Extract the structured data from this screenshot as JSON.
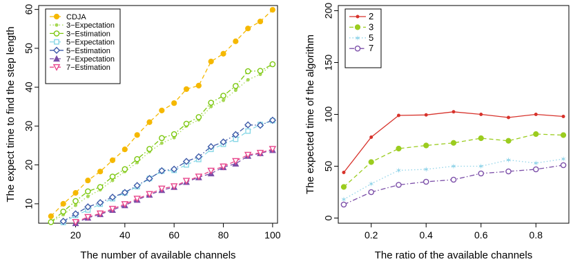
{
  "chart_data": [
    {
      "type": "line",
      "xlabel": "The number of available channels",
      "ylabel": "The expect time to find the step length",
      "xlim": [
        5,
        102
      ],
      "ylim": [
        5,
        61
      ],
      "xticks": [
        20,
        40,
        60,
        80,
        100
      ],
      "yticks": [
        10,
        20,
        30,
        40,
        50,
        60
      ],
      "legend_position": "top-left",
      "series": [
        {
          "name": "CDJA",
          "color": "#f5b800",
          "marker": "circle-filled",
          "line": "dashed",
          "x": [
            10,
            15,
            20,
            25,
            30,
            35,
            40,
            45,
            50,
            55,
            60,
            65,
            70,
            75,
            80,
            85,
            90,
            95,
            100
          ],
          "y": [
            6.8,
            10.0,
            12.8,
            16.0,
            18.3,
            21.2,
            24.0,
            27.7,
            31.0,
            34.0,
            35.9,
            39.5,
            40.4,
            46.6,
            48.6,
            51.8,
            55.1,
            56.9,
            59.9
          ]
        },
        {
          "name": "3−Expectation",
          "color": "#a6d854",
          "marker": "dot",
          "line": "dotted",
          "x": [
            10,
            15,
            20,
            25,
            30,
            35,
            40,
            45,
            50,
            55,
            60,
            65,
            70,
            75,
            80,
            85,
            90,
            95,
            100
          ],
          "y": [
            5.2,
            7.2,
            9.6,
            11.9,
            13.6,
            16.0,
            18.3,
            20.6,
            23.4,
            25.6,
            27.0,
            30.0,
            31.6,
            35.0,
            36.6,
            39.2,
            41.9,
            43.3,
            45.9
          ]
        },
        {
          "name": "3−Estimation",
          "color": "#7ac70c",
          "marker": "circle-open",
          "line": "dashdot",
          "x": [
            10,
            15,
            20,
            25,
            30,
            35,
            40,
            45,
            50,
            55,
            60,
            65,
            70,
            75,
            80,
            85,
            90,
            95,
            100
          ],
          "y": [
            5.3,
            8.0,
            10.7,
            13.2,
            14.3,
            17.0,
            18.9,
            21.5,
            24.1,
            26.9,
            27.9,
            30.6,
            32.3,
            36.0,
            37.8,
            40.3,
            44.1,
            44.2,
            45.9
          ]
        },
        {
          "name": "5−Expectation",
          "color": "#87d7e6",
          "marker": "square-open",
          "line": "dashed",
          "x": [
            15,
            20,
            25,
            30,
            35,
            40,
            45,
            50,
            55,
            60,
            65,
            70,
            75,
            80,
            85,
            90,
            95,
            100
          ],
          "y": [
            5.2,
            7.0,
            8.4,
            9.9,
            11.3,
            12.8,
            14.4,
            16.5,
            18.4,
            18.6,
            20.0,
            21.4,
            24.0,
            25.3,
            26.6,
            28.7,
            30.4,
            31.4
          ]
        },
        {
          "name": "5−Estimation",
          "color": "#3d5aa8",
          "marker": "diamond-open",
          "line": "dashdot",
          "x": [
            15,
            20,
            25,
            30,
            35,
            40,
            45,
            50,
            55,
            60,
            65,
            70,
            75,
            80,
            85,
            90,
            95,
            100
          ],
          "y": [
            5.5,
            7.4,
            9.2,
            10.3,
            11.7,
            12.9,
            14.7,
            16.5,
            18.5,
            18.9,
            20.9,
            22.1,
            24.7,
            25.9,
            27.8,
            30.3,
            30.2,
            31.5
          ]
        },
        {
          "name": "7−Expectation",
          "color": "#7b4ea8",
          "marker": "triangle-up",
          "line": "dashed",
          "x": [
            20,
            25,
            30,
            35,
            40,
            45,
            50,
            55,
            60,
            65,
            70,
            75,
            80,
            85,
            90,
            95,
            100
          ],
          "y": [
            5.0,
            6.4,
            7.3,
            8.4,
            9.6,
            11.0,
            12.3,
            13.5,
            14.3,
            15.6,
            16.8,
            17.8,
            19.4,
            20.3,
            22.3,
            23.0,
            23.8
          ]
        },
        {
          "name": "7−Estimation",
          "color": "#e8458b",
          "marker": "triangle-down-open",
          "line": "dashed",
          "x": [
            20,
            25,
            30,
            35,
            40,
            45,
            50,
            55,
            60,
            65,
            70,
            75,
            80,
            85,
            90,
            95,
            100
          ],
          "y": [
            5.3,
            6.6,
            7.5,
            8.7,
            9.9,
            11.3,
            12.5,
            13.9,
            14.5,
            15.9,
            17.0,
            18.5,
            19.6,
            21.0,
            22.6,
            23.1,
            24.1
          ]
        }
      ]
    },
    {
      "type": "line",
      "xlabel": "The ratio of the available channels",
      "ylabel": "The expected time of the algorithm",
      "xlim": [
        0.08,
        0.92
      ],
      "ylim": [
        -5,
        205
      ],
      "xticks": [
        0.2,
        0.4,
        0.6,
        0.8
      ],
      "yticks": [
        0,
        50,
        100,
        150,
        200
      ],
      "legend_position": "top-left",
      "series": [
        {
          "name": "2",
          "color": "#d7322b",
          "marker": "dot",
          "line": "solid",
          "x": [
            0.1,
            0.2,
            0.3,
            0.4,
            0.5,
            0.6,
            0.7,
            0.8,
            0.9
          ],
          "y": [
            44,
            78,
            99,
            99.5,
            102.5,
            100,
            97,
            100,
            98
          ]
        },
        {
          "name": "3",
          "color": "#9bcc1f",
          "marker": "circle-filled",
          "line": "dashed",
          "x": [
            0.1,
            0.2,
            0.3,
            0.4,
            0.5,
            0.6,
            0.7,
            0.8,
            0.9
          ],
          "y": [
            30,
            54,
            67,
            70,
            72.5,
            77,
            74.5,
            81,
            80
          ]
        },
        {
          "name": "5",
          "color": "#8fd3e8",
          "marker": "star",
          "line": "dotted",
          "x": [
            0.1,
            0.2,
            0.3,
            0.4,
            0.5,
            0.6,
            0.7,
            0.8,
            0.9
          ],
          "y": [
            18,
            33,
            46,
            47,
            50,
            50,
            56,
            53,
            57
          ]
        },
        {
          "name": "7",
          "color": "#7b4ea8",
          "marker": "circle-open",
          "line": "dashdot",
          "x": [
            0.1,
            0.2,
            0.3,
            0.4,
            0.5,
            0.6,
            0.7,
            0.8,
            0.9
          ],
          "y": [
            13,
            25,
            32,
            35,
            37,
            43,
            45,
            47,
            51
          ]
        }
      ]
    }
  ]
}
